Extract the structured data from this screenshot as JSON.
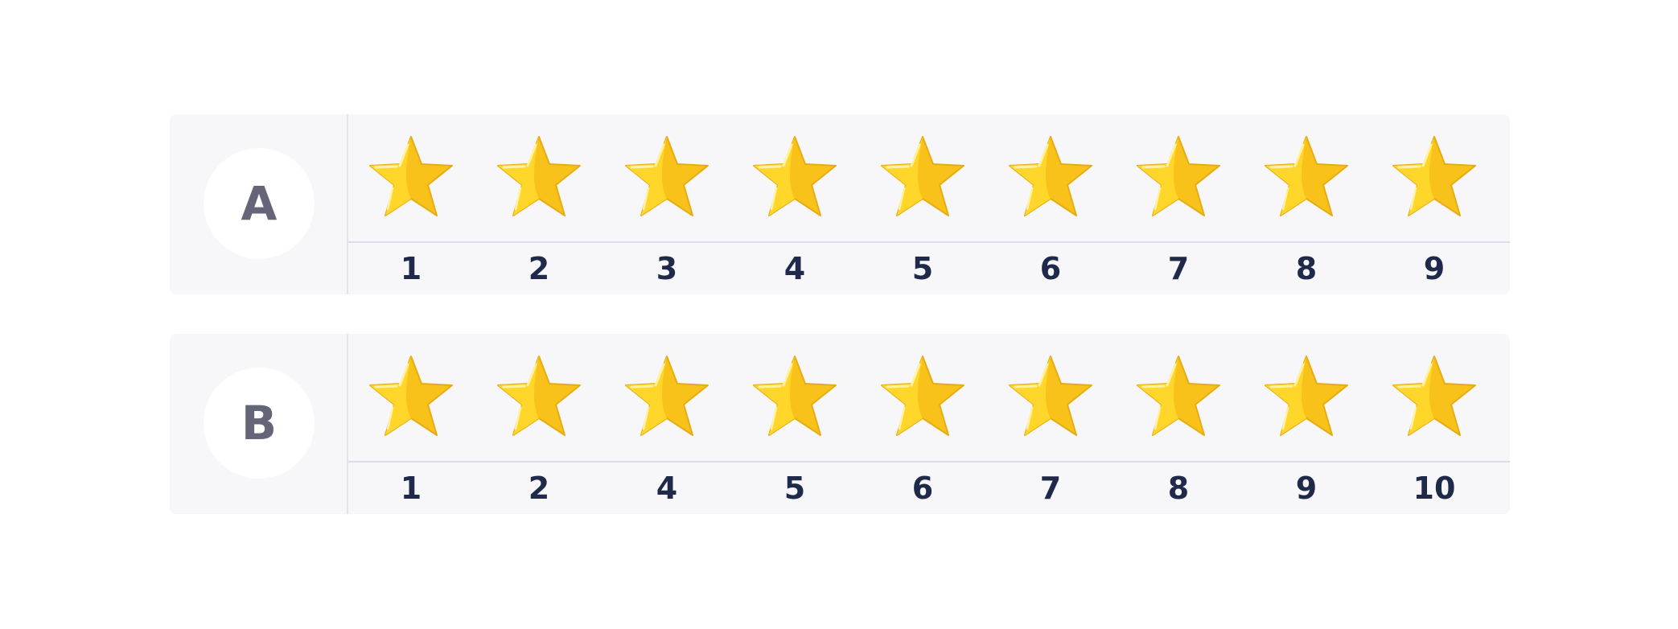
{
  "rows": [
    {
      "label": "A",
      "stars": 9,
      "numbers": [
        "1",
        "2",
        "3",
        "4",
        "5",
        "6",
        "7",
        "8",
        "9"
      ]
    },
    {
      "label": "B",
      "stars": 9,
      "numbers": [
        "1",
        "2",
        "4",
        "5",
        "6",
        "7",
        "8",
        "9",
        "10"
      ]
    }
  ],
  "colors": {
    "star_light": "#ffd629",
    "star_dark": "#f8c21a",
    "number": "#1f2a4a",
    "label": "#656579",
    "card_bg": "#f7f7f9",
    "divider": "#e2e3ec"
  },
  "icons": {
    "star": "star-icon"
  }
}
